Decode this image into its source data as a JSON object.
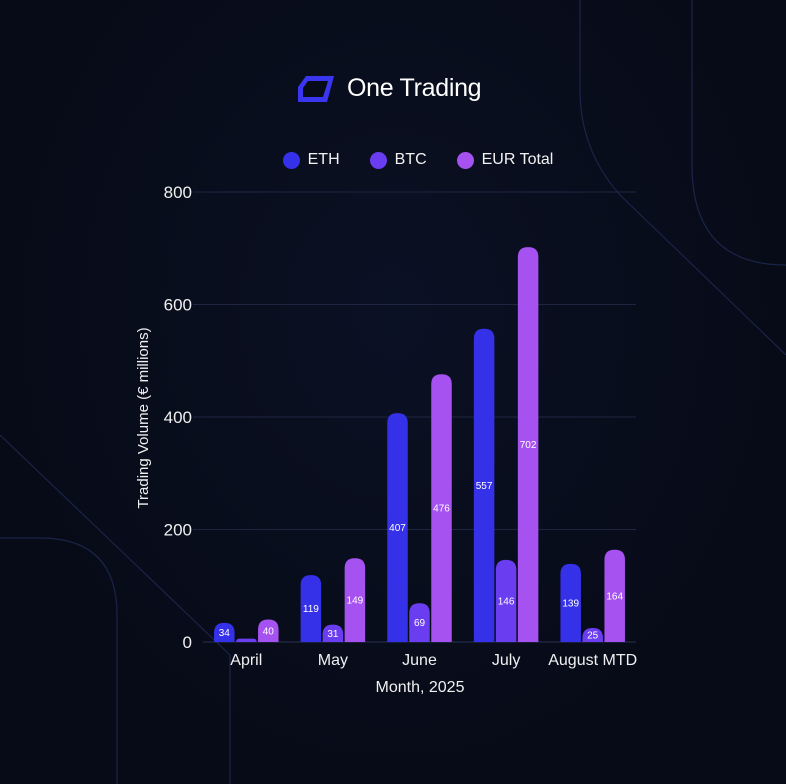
{
  "brand": {
    "name": "One Trading"
  },
  "colors": {
    "eth": "#3531e8",
    "btc": "#6a3df0",
    "eur_total": "#a652f0",
    "grid": "#1f2540",
    "background": "#070b18"
  },
  "chart_data": {
    "type": "bar",
    "title": "",
    "xlabel": "Month, 2025",
    "ylabel": "Trading Volume (€ millions)",
    "ylim": [
      0,
      800
    ],
    "yticks": [
      0,
      200,
      400,
      600,
      800
    ],
    "grid": true,
    "legend_position": "top",
    "categories": [
      "April",
      "May",
      "June",
      "July",
      "August MTD"
    ],
    "series": [
      {
        "name": "ETH",
        "color": "#3531e8",
        "values": [
          34,
          119,
          407,
          557,
          139
        ]
      },
      {
        "name": "BTC",
        "color": "#6a3df0",
        "values": [
          6,
          31,
          69,
          146,
          25
        ]
      },
      {
        "name": "EUR Total",
        "color": "#a652f0",
        "values": [
          40,
          149,
          476,
          702,
          164
        ]
      }
    ],
    "data_labels": [
      [
        "34",
        "",
        "40"
      ],
      [
        "119",
        "31",
        "149"
      ],
      [
        "407",
        "69",
        "476"
      ],
      [
        "557",
        "146",
        "702"
      ],
      [
        "139",
        "25",
        "164"
      ]
    ]
  }
}
